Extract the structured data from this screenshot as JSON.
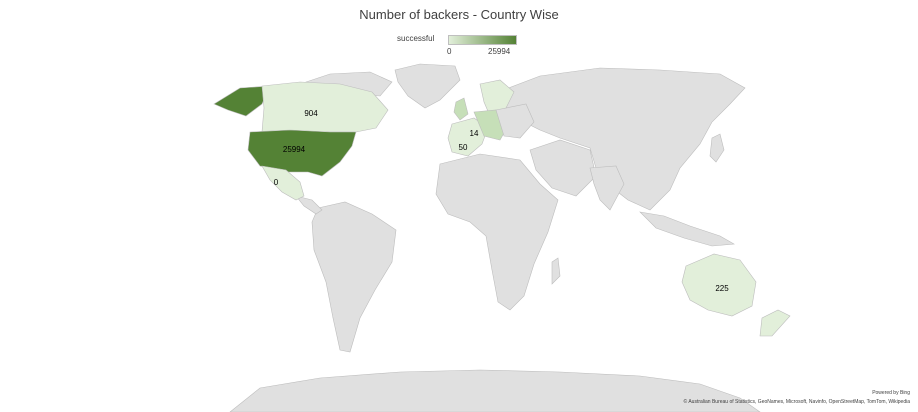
{
  "title": "Number of backers - Country Wise",
  "legend": {
    "label": "successful",
    "min": "0",
    "max": "25994",
    "color_low": "#e2efda",
    "color_high": "#548235"
  },
  "colors": {
    "land": "#e0e0e0",
    "border": "#bdbdbd",
    "usa": "#548235",
    "light": "#e2efda",
    "mid": "#c6dfb8"
  },
  "regions": [
    {
      "name": "United States",
      "value": "25994"
    },
    {
      "name": "Canada",
      "value": "904"
    },
    {
      "name": "Australia",
      "value": "225"
    },
    {
      "name": "Europe (west)",
      "value": "50"
    },
    {
      "name": "Europe (central)",
      "value": "14"
    },
    {
      "name": "Mexico",
      "value": "0"
    }
  ],
  "footer": {
    "powered": "Powered by Bing",
    "attribution": "© Australian Bureau of Statistics, GeoNames, Microsoft, Navinfo, OpenStreetMap, TomTom, Wikipedia"
  }
}
